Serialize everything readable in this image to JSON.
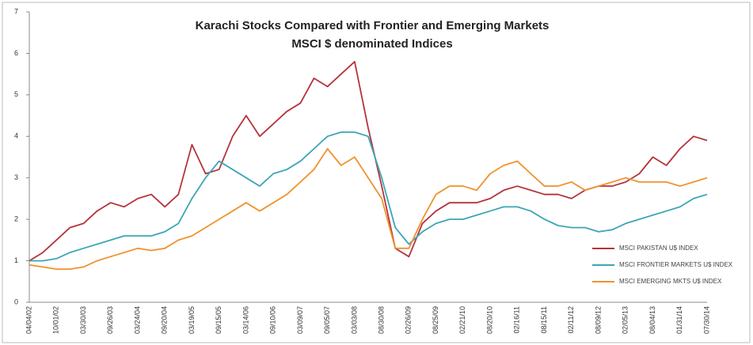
{
  "chart_data": {
    "type": "line",
    "title": [
      "Karachi Stocks Compared with Frontier and Emerging Markets",
      "MSCI $ denominated Indices"
    ],
    "categories": [
      "04/04/02",
      null,
      "10/01/02",
      null,
      "03/30/03",
      null,
      "09/26/03",
      null,
      "03/24/04",
      null,
      "09/20/04",
      null,
      "03/19/05",
      null,
      "09/15/05",
      null,
      "03/14/06",
      null,
      "09/10/06",
      null,
      "03/09/07",
      null,
      "09/05/07",
      null,
      "03/03/08",
      null,
      "08/30/08",
      null,
      "02/26/09",
      null,
      "08/25/09",
      null,
      "02/21/10",
      null,
      "08/20/10",
      null,
      "02/16/11",
      null,
      "08/15/11",
      null,
      "02/11/12",
      null,
      "08/09/12",
      null,
      "02/05/13",
      null,
      "08/04/13",
      null,
      "01/31/14",
      null,
      "07/30/14"
    ],
    "series": [
      {
        "name": "MSCI PAKISTAN U$ INDEX",
        "color": "#b5333b",
        "values": [
          1.0,
          1.2,
          1.5,
          1.8,
          1.9,
          2.2,
          2.4,
          2.3,
          2.5,
          2.6,
          2.3,
          2.6,
          3.8,
          3.1,
          3.2,
          4.0,
          4.5,
          4.0,
          4.3,
          4.6,
          4.8,
          5.4,
          5.2,
          5.5,
          5.8,
          4.2,
          2.8,
          1.3,
          1.1,
          1.9,
          2.2,
          2.4,
          2.4,
          2.4,
          2.5,
          2.7,
          2.8,
          2.7,
          2.6,
          2.6,
          2.5,
          2.7,
          2.8,
          2.8,
          2.9,
          3.1,
          3.5,
          3.3,
          3.7,
          4.0,
          3.9
        ]
      },
      {
        "name": "MSCI FRONTIER MARKETS U$ INDEX",
        "color": "#3ba6b6",
        "values": [
          1.0,
          1.0,
          1.05,
          1.2,
          1.3,
          1.4,
          1.5,
          1.6,
          1.6,
          1.6,
          1.7,
          1.9,
          2.5,
          3.0,
          3.4,
          3.2,
          3.0,
          2.8,
          3.1,
          3.2,
          3.4,
          3.7,
          4.0,
          4.1,
          4.1,
          4.0,
          3.0,
          1.8,
          1.4,
          1.7,
          1.9,
          2.0,
          2.0,
          2.1,
          2.2,
          2.3,
          2.3,
          2.2,
          2.0,
          1.85,
          1.8,
          1.8,
          1.7,
          1.75,
          1.9,
          2.0,
          2.1,
          2.2,
          2.3,
          2.5,
          2.6
        ]
      },
      {
        "name": "MSCI EMERGING MKTS U$ INDEX",
        "color": "#f0922e",
        "values": [
          0.9,
          0.85,
          0.8,
          0.8,
          0.85,
          1.0,
          1.1,
          1.2,
          1.3,
          1.25,
          1.3,
          1.5,
          1.6,
          1.8,
          2.0,
          2.2,
          2.4,
          2.2,
          2.4,
          2.6,
          2.9,
          3.2,
          3.7,
          3.3,
          3.5,
          3.0,
          2.5,
          1.3,
          1.3,
          2.0,
          2.6,
          2.8,
          2.8,
          2.7,
          3.1,
          3.3,
          3.4,
          3.1,
          2.8,
          2.8,
          2.9,
          2.7,
          2.8,
          2.9,
          3.0,
          2.9,
          2.9,
          2.9,
          2.8,
          2.9,
          3.0
        ]
      }
    ],
    "ylim": [
      0,
      7
    ],
    "yticks": [
      0,
      1,
      2,
      3,
      4,
      5,
      6,
      7
    ],
    "grid": false,
    "legend": "lower right"
  }
}
